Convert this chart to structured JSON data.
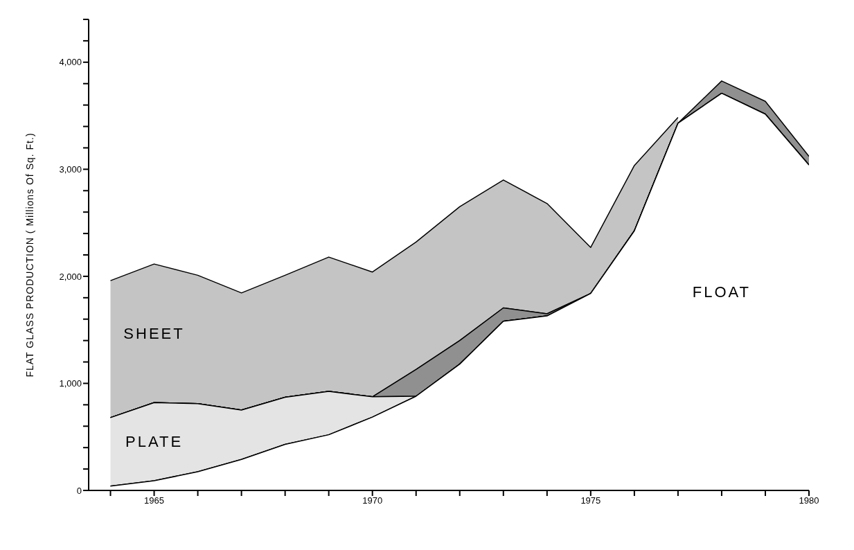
{
  "chart_data": {
    "type": "area",
    "stacked": true,
    "ylabel": "FLAT GLASS PRODUCTION    ( Millions Of Sq. Ft.)",
    "x": [
      1964,
      1965,
      1966,
      1967,
      1968,
      1969,
      1970,
      1971,
      1972,
      1973,
      1974,
      1975,
      1976,
      1977,
      1978,
      1979,
      1980
    ],
    "series": [
      {
        "name": "FLOAT",
        "color": "#ffffff",
        "values": [
          40,
          90,
          175,
          290,
          430,
          520,
          685,
          880,
          1180,
          1580,
          1630,
          1840,
          2425,
          3430,
          3710,
          3515,
          3040
        ]
      },
      {
        "name": "PLATE",
        "color": "#e4e4e4",
        "values": [
          640,
          730,
          635,
          460,
          440,
          405,
          190,
          0,
          0,
          0,
          0,
          0,
          0,
          0,
          0,
          0,
          0
        ]
      },
      {
        "color": "#909090",
        "values": [
          0,
          0,
          0,
          0,
          0,
          0,
          0,
          250,
          220,
          125,
          20,
          0,
          0,
          0,
          115,
          120,
          80
        ]
      },
      {
        "name": "SHEET",
        "color": "#c4c4c4",
        "values": [
          1280,
          1295,
          1200,
          1095,
          1140,
          1255,
          1165,
          1190,
          1250,
          1195,
          1030,
          430,
          610,
          55,
          null,
          null,
          null
        ]
      }
    ],
    "xlim": [
      1963.5,
      1980
    ],
    "xticks": [
      {
        "value": 1964,
        "label": null
      },
      1965,
      {
        "value": 1966,
        "label": null
      },
      {
        "value": 1967,
        "label": null
      },
      {
        "value": 1968,
        "label": null
      },
      {
        "value": 1969,
        "label": null
      },
      1970,
      {
        "value": 1971,
        "label": null
      },
      {
        "value": 1972,
        "label": null
      },
      {
        "value": 1973,
        "label": null
      },
      {
        "value": 1974,
        "label": null
      },
      1975,
      {
        "value": 1976,
        "label": null
      },
      {
        "value": 1977,
        "label": null
      },
      {
        "value": 1978,
        "label": null
      },
      {
        "value": 1979,
        "label": null
      },
      1980
    ],
    "ylim": [
      0,
      4400
    ],
    "yticks": [
      0,
      {
        "value": 200,
        "label": null
      },
      {
        "value": 400,
        "label": null
      },
      {
        "value": 600,
        "label": null
      },
      {
        "value": 800,
        "label": null
      },
      {
        "value": 1000,
        "label": "1,000"
      },
      {
        "value": 1200,
        "label": null
      },
      {
        "value": 1400,
        "label": null
      },
      {
        "value": 1600,
        "label": null
      },
      {
        "value": 1800,
        "label": null
      },
      {
        "value": 2000,
        "label": "2,000"
      },
      {
        "value": 2200,
        "label": null
      },
      {
        "value": 2400,
        "label": null
      },
      {
        "value": 2600,
        "label": null
      },
      {
        "value": 2800,
        "label": null
      },
      {
        "value": 3000,
        "label": "3,000"
      },
      {
        "value": 3200,
        "label": null
      },
      {
        "value": 3400,
        "label": null
      },
      {
        "value": 3600,
        "label": null
      },
      {
        "value": 3800,
        "label": null
      },
      {
        "value": 4000,
        "label": "4,000"
      },
      {
        "value": 4200,
        "label": null
      },
      {
        "value": 4400,
        "label": null
      }
    ],
    "grid": false,
    "legend": false
  }
}
